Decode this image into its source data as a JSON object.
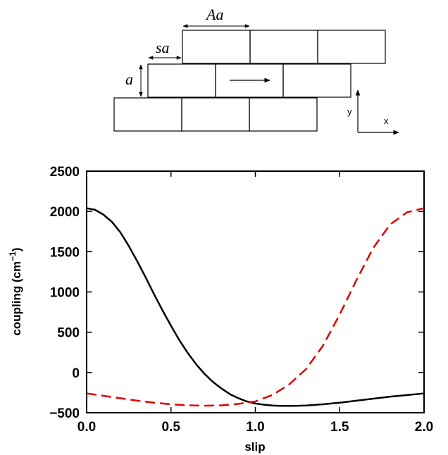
{
  "diagram": {
    "label_A": "Aa",
    "label_s": "sa",
    "label_a": "a",
    "axis_y": "y",
    "axis_x": "x"
  },
  "chart_data": {
    "type": "line",
    "title": "",
    "xlabel": "slip",
    "ylabel_main": "coupling (cm",
    "ylabel_sup": "−1",
    "ylabel_close": ")",
    "xlim": [
      0.0,
      2.0
    ],
    "ylim": [
      -500,
      2500
    ],
    "xticks": [
      0.0,
      0.5,
      1.0,
      1.5,
      2.0
    ],
    "xtick_labels": [
      "0.0",
      "0.5",
      "1.0",
      "1.5",
      "2.0"
    ],
    "yticks": [
      -500,
      0,
      500,
      1000,
      1500,
      2000,
      2500
    ],
    "ytick_labels": [
      "−500",
      "0",
      "500",
      "1000",
      "1500",
      "2000",
      "2500"
    ],
    "grid": false,
    "legend": "none",
    "series": [
      {
        "style": "solid",
        "color": "#000000",
        "x": [
          0.0,
          0.05,
          0.1,
          0.15,
          0.2,
          0.25,
          0.3,
          0.35,
          0.4,
          0.45,
          0.5,
          0.55,
          0.6,
          0.65,
          0.7,
          0.75,
          0.8,
          0.85,
          0.9,
          0.95,
          1.0,
          1.05,
          1.1,
          1.15,
          1.2,
          1.25,
          1.3,
          1.4,
          1.5,
          1.6,
          1.7,
          1.8,
          1.9,
          2.0
        ],
        "y": [
          2040,
          2020,
          1960,
          1870,
          1740,
          1570,
          1380,
          1180,
          970,
          770,
          580,
          400,
          240,
          100,
          -20,
          -120,
          -200,
          -270,
          -320,
          -360,
          -385,
          -400,
          -410,
          -415,
          -415,
          -414,
          -410,
          -395,
          -375,
          -350,
          -325,
          -300,
          -280,
          -260
        ]
      },
      {
        "style": "dashed",
        "color": "#e00000",
        "x": [
          0.0,
          0.1,
          0.2,
          0.3,
          0.4,
          0.5,
          0.6,
          0.7,
          0.8,
          0.9,
          1.0,
          1.1,
          1.2,
          1.3,
          1.4,
          1.5,
          1.6,
          1.7,
          1.8,
          1.9,
          2.0
        ],
        "y": [
          -260,
          -290,
          -320,
          -350,
          -375,
          -395,
          -408,
          -413,
          -408,
          -390,
          -360,
          -280,
          -150,
          40,
          330,
          720,
          1150,
          1550,
          1840,
          1990,
          2040
        ]
      }
    ]
  }
}
